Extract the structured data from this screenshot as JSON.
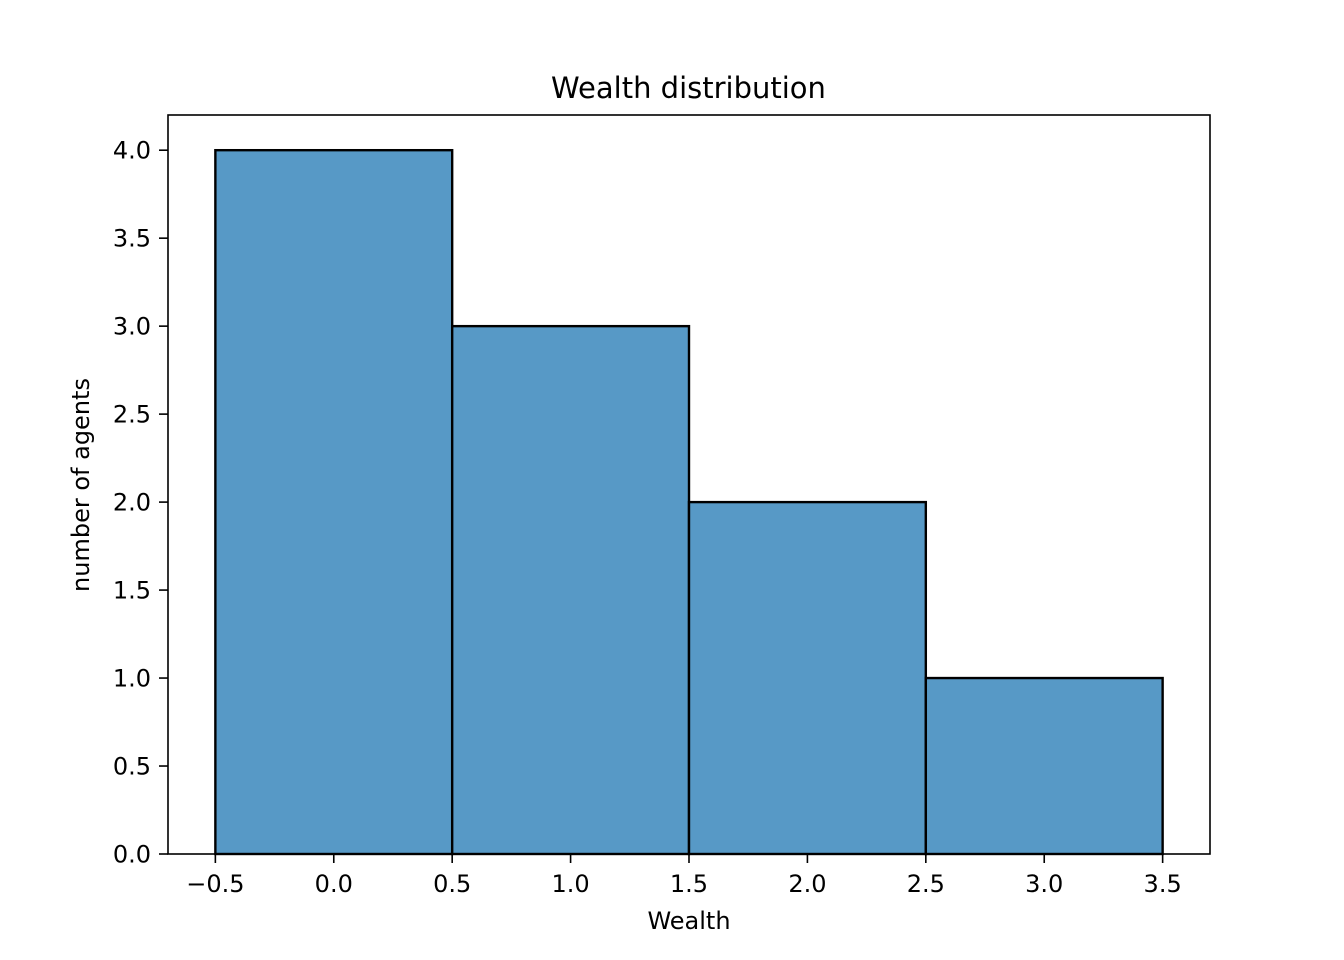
{
  "chart_data": {
    "type": "bar",
    "title": "Wealth distribution",
    "xlabel": "Wealth",
    "ylabel": "number of agents",
    "bins": [
      {
        "start": -0.5,
        "end": 0.5,
        "value": 4
      },
      {
        "start": 0.5,
        "end": 1.5,
        "value": 3
      },
      {
        "start": 1.5,
        "end": 2.5,
        "value": 2
      },
      {
        "start": 2.5,
        "end": 3.5,
        "value": 1
      }
    ],
    "xlim": [
      -0.7,
      3.7
    ],
    "ylim": [
      0,
      4.2
    ],
    "xticks": [
      -0.5,
      0.0,
      0.5,
      1.0,
      1.5,
      2.0,
      2.5,
      3.0,
      3.5
    ],
    "xtick_labels": [
      "−0.5",
      "0.0",
      "0.5",
      "1.0",
      "1.5",
      "2.0",
      "2.5",
      "3.0",
      "3.5"
    ],
    "yticks": [
      0.0,
      0.5,
      1.0,
      1.5,
      2.0,
      2.5,
      3.0,
      3.5,
      4.0
    ],
    "ytick_labels": [
      "0.0",
      "0.5",
      "1.0",
      "1.5",
      "2.0",
      "2.5",
      "3.0",
      "3.5",
      "4.0"
    ],
    "grid": false,
    "colors": {
      "bar_fill": "#5799c6",
      "bar_edge": "#000000"
    }
  }
}
